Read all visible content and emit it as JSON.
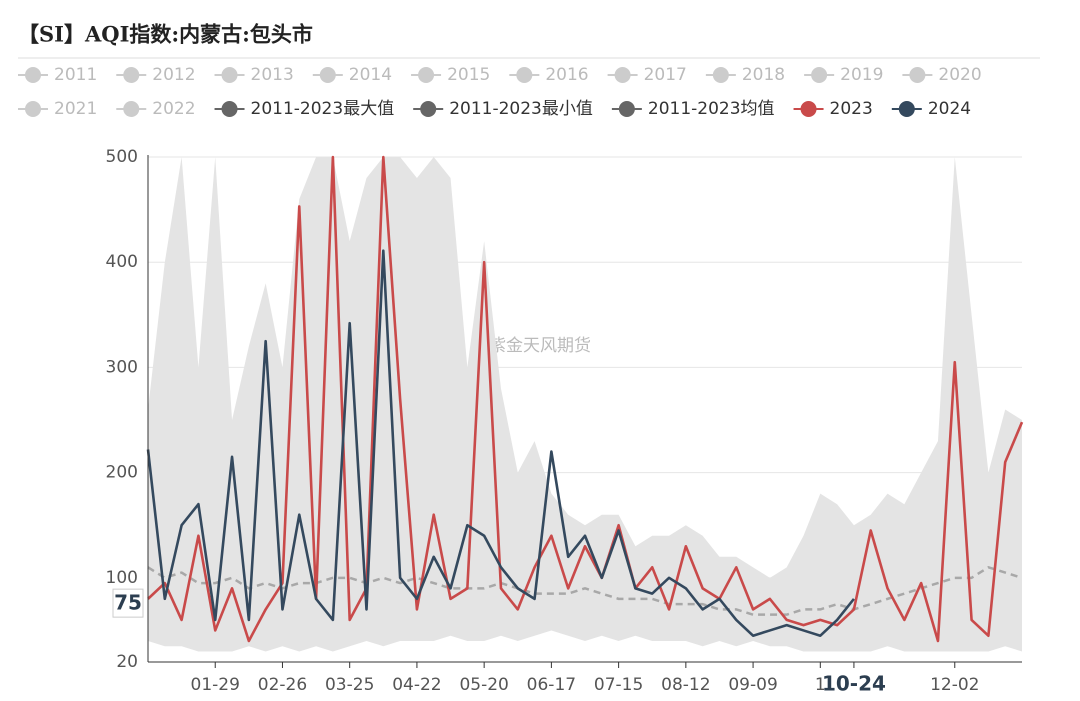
{
  "chart_data": {
    "type": "line",
    "title": "【SI】AQI指数:内蒙古:包头市",
    "watermark": "紫金天风期货",
    "categories": [
      null,
      null,
      null,
      null,
      "01-29",
      null,
      null,
      null,
      "02-26",
      null,
      null,
      null,
      "03-25",
      null,
      null,
      null,
      "04-22",
      null,
      null,
      null,
      "05-20",
      null,
      null,
      null,
      "06-17",
      null,
      null,
      null,
      "07-15",
      null,
      null,
      null,
      "08-12",
      null,
      null,
      null,
      "09-09",
      null,
      null,
      null,
      "1",
      null,
      "10-24",
      null,
      null,
      null,
      null,
      null,
      "12-02",
      null,
      null,
      null,
      null
    ],
    "highlight_category": 42,
    "pointer": {
      "value": 75,
      "label": "75"
    },
    "ylim": [
      20,
      500
    ],
    "yticks": [
      20,
      100,
      200,
      300,
      400,
      500
    ],
    "grid": true,
    "area_color": "#e4e4e4",
    "mean_line_color": "#a8a8a8",
    "series": [
      {
        "name": "2011",
        "color": "#cccccc",
        "hidden": true
      },
      {
        "name": "2012",
        "color": "#cccccc",
        "hidden": true
      },
      {
        "name": "2013",
        "color": "#cccccc",
        "hidden": true
      },
      {
        "name": "2014",
        "color": "#cccccc",
        "hidden": true
      },
      {
        "name": "2015",
        "color": "#cccccc",
        "hidden": true
      },
      {
        "name": "2016",
        "color": "#cccccc",
        "hidden": true
      },
      {
        "name": "2017",
        "color": "#cccccc",
        "hidden": true
      },
      {
        "name": "2018",
        "color": "#cccccc",
        "hidden": true
      },
      {
        "name": "2019",
        "color": "#cccccc",
        "hidden": true
      },
      {
        "name": "2020",
        "color": "#cccccc",
        "hidden": true
      },
      {
        "name": "2021",
        "color": "#cccccc",
        "hidden": true
      },
      {
        "name": "2022",
        "color": "#cccccc",
        "hidden": true
      },
      {
        "name": "2011-2023最大值",
        "color": "#666666",
        "style": "area-top",
        "values": [
          260,
          400,
          500,
          300,
          500,
          250,
          320,
          380,
          300,
          460,
          500,
          500,
          420,
          480,
          500,
          500,
          480,
          500,
          480,
          300,
          420,
          280,
          200,
          230,
          180,
          160,
          150,
          160,
          160,
          130,
          140,
          140,
          150,
          140,
          120,
          120,
          110,
          100,
          110,
          140,
          180,
          170,
          150,
          160,
          180,
          170,
          200,
          230,
          500,
          350,
          200,
          260,
          250
        ]
      },
      {
        "name": "2011-2023最小值",
        "color": "#666666",
        "style": "area-bottom",
        "values": [
          40,
          35,
          35,
          30,
          30,
          30,
          35,
          30,
          35,
          30,
          35,
          30,
          35,
          40,
          35,
          40,
          40,
          40,
          45,
          40,
          40,
          45,
          40,
          45,
          50,
          45,
          40,
          45,
          40,
          45,
          40,
          40,
          40,
          35,
          40,
          35,
          40,
          35,
          35,
          30,
          30,
          30,
          30,
          30,
          35,
          30,
          30,
          30,
          30,
          30,
          30,
          35,
          30
        ]
      },
      {
        "name": "2011-2023均值",
        "color": "#666666",
        "style": "dashed",
        "values": [
          110,
          100,
          105,
          95,
          95,
          100,
          90,
          95,
          90,
          95,
          95,
          100,
          100,
          95,
          100,
          95,
          100,
          95,
          90,
          90,
          90,
          95,
          90,
          85,
          85,
          85,
          90,
          85,
          80,
          80,
          80,
          75,
          75,
          75,
          70,
          70,
          65,
          65,
          65,
          70,
          70,
          75,
          70,
          75,
          80,
          85,
          90,
          95,
          100,
          100,
          110,
          105,
          100
        ]
      },
      {
        "name": "2023",
        "color": "#c94a4a",
        "style": "solid",
        "values": [
          80,
          95,
          60,
          140,
          50,
          90,
          40,
          70,
          95,
          453,
          80,
          500,
          60,
          90,
          500,
          270,
          70,
          160,
          80,
          90,
          400,
          90,
          70,
          110,
          140,
          90,
          130,
          100,
          150,
          90,
          110,
          70,
          130,
          90,
          80,
          110,
          70,
          80,
          60,
          55,
          60,
          55,
          70,
          145,
          90,
          60,
          95,
          40,
          305,
          60,
          45,
          210,
          248
        ]
      },
      {
        "name": "2024",
        "color": "#34495e",
        "style": "solid",
        "values": [
          222,
          80,
          150,
          170,
          60,
          215,
          60,
          325,
          70,
          160,
          80,
          60,
          342,
          70,
          411,
          100,
          80,
          120,
          90,
          150,
          140,
          110,
          90,
          80,
          220,
          120,
          140,
          100,
          145,
          90,
          85,
          100,
          90,
          70,
          80,
          60,
          45,
          50,
          55,
          50,
          45,
          60,
          80,
          null,
          null,
          null,
          null,
          null,
          null,
          null,
          null,
          null,
          null
        ]
      }
    ]
  }
}
